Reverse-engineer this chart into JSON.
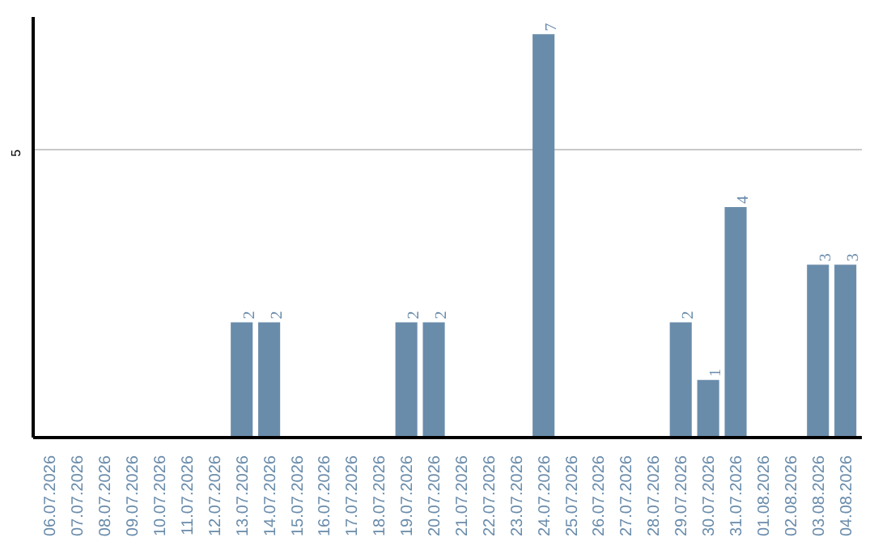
{
  "chart_data": {
    "type": "bar",
    "categories": [
      "06.07.2026",
      "07.07.2026",
      "08.07.2026",
      "09.07.2026",
      "10.07.2026",
      "11.07.2026",
      "12.07.2026",
      "13.07.2026",
      "14.07.2026",
      "15.07.2026",
      "16.07.2026",
      "17.07.2026",
      "18.07.2026",
      "19.07.2026",
      "20.07.2026",
      "21.07.2026",
      "22.07.2026",
      "23.07.2026",
      "24.07.2026",
      "25.07.2026",
      "26.07.2026",
      "27.07.2026",
      "28.07.2026",
      "29.07.2026",
      "30.07.2026",
      "31.07.2026",
      "01.08.2026",
      "02.08.2026",
      "03.08.2026",
      "04.08.2026"
    ],
    "values": [
      0,
      0,
      0,
      0,
      0,
      0,
      0,
      2,
      2,
      0,
      0,
      0,
      0,
      2,
      2,
      0,
      0,
      0,
      7,
      0,
      0,
      0,
      0,
      2,
      1,
      4,
      0,
      0,
      3,
      3
    ],
    "value_labels": [
      null,
      null,
      null,
      null,
      null,
      null,
      null,
      "2",
      "2",
      null,
      null,
      null,
      null,
      "2",
      "2",
      null,
      null,
      null,
      "7",
      null,
      null,
      null,
      null,
      "2",
      "1",
      "4",
      null,
      null,
      "3",
      "3"
    ],
    "color": "#6a8cab",
    "ylim": [
      0,
      7.3
    ],
    "yticks": [
      5
    ],
    "grid": "y"
  }
}
